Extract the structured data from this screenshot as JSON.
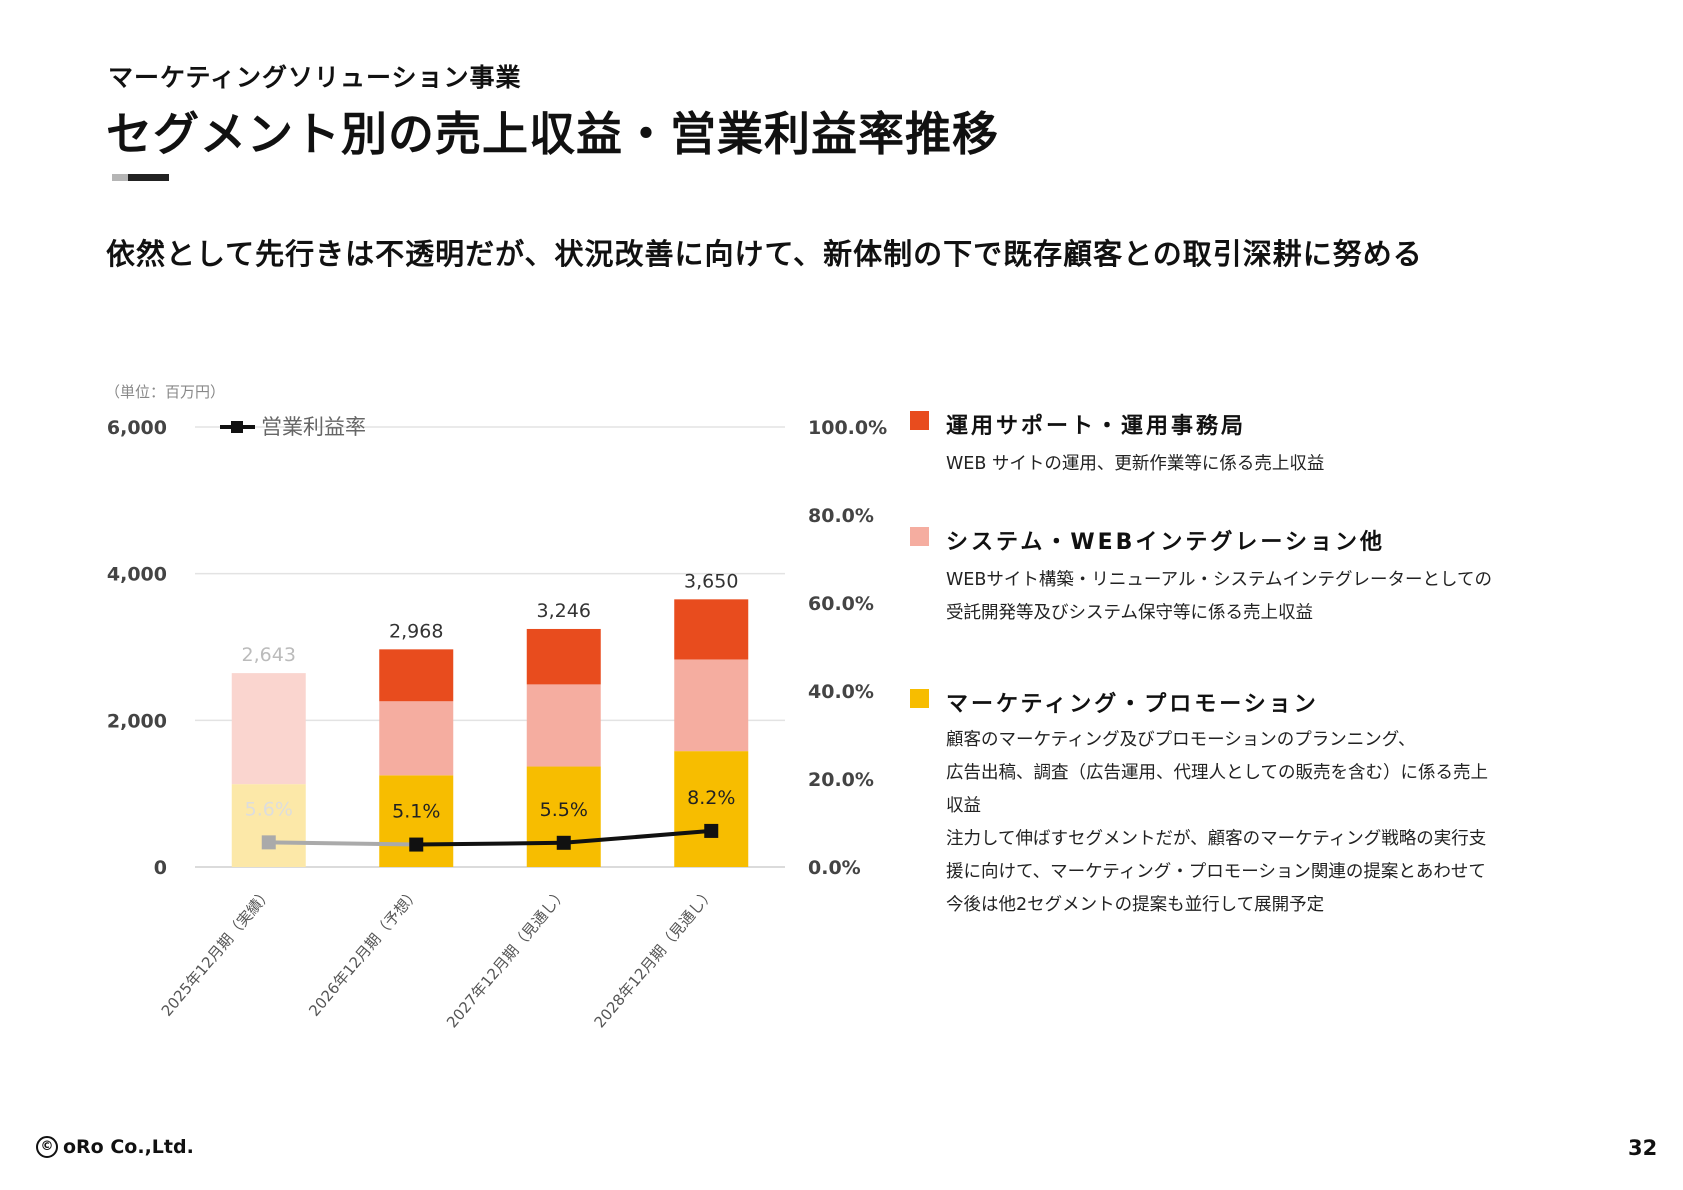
{
  "header": {
    "section_label": "マーケティングソリューション事業",
    "title": "セグメント別の売上収益・営業利益率推移",
    "subtitle": "依然として先行きは不透明だが、状況改善に向けて、新体制の下で既存顧客との取引深耕に努める"
  },
  "chart_data": {
    "type": "bar",
    "stacked": true,
    "unit_label": "（単位：百万円）",
    "categories": [
      "2025年12月期（実績）",
      "2026年12月期（予想）",
      "2027年12月期（見通し）",
      "2028年12月期（見通し）"
    ],
    "series": [
      {
        "name": "マーケティング・プロモーション",
        "color": "#F7BD00",
        "faded_color": "#FCE8A8",
        "values": [
          1130,
          1250,
          1370,
          1580
        ]
      },
      {
        "name": "システム・WEBインテグレーション他",
        "color": "#F5ADA0",
        "faded_color": "#FAD5CF",
        "values": [
          1510,
          1010,
          1120,
          1250
        ]
      },
      {
        "name": "運用サポート・運用事務局",
        "color": "#E84C1E",
        "faded_color": "#F6C3B8",
        "values": [
          3,
          708,
          756,
          820
        ]
      }
    ],
    "totals": [
      2643,
      2968,
      3246,
      3650
    ],
    "total_labels": [
      "2,643",
      "2,968",
      "3,246",
      "3,650"
    ],
    "first_category_faded": true,
    "left_axis": {
      "min": 0,
      "max": 6000,
      "ticks": [
        0,
        2000,
        4000,
        6000
      ],
      "tick_labels": [
        "0",
        "2,000",
        "4,000",
        "6,000"
      ]
    },
    "right_axis": {
      "min": 0,
      "max": 100,
      "ticks": [
        0,
        20,
        40,
        60,
        80,
        100
      ],
      "tick_labels": [
        "0.0%",
        "20.0%",
        "40.0%",
        "60.0%",
        "80.0%",
        "100.0%"
      ]
    },
    "line_series": {
      "name": "営業利益率",
      "values": [
        5.6,
        5.1,
        5.5,
        8.2
      ],
      "labels": [
        "5.6%",
        "5.1%",
        "5.5%",
        "8.2%"
      ],
      "color": "#111111",
      "faded_color": "#AAAAAA"
    },
    "gridlines": true,
    "legend_position": "top-left"
  },
  "legend": {
    "items": [
      {
        "title": "運用サポート・運用事務局",
        "color": "#E84C1E",
        "lines": [
          "WEB サイトの運用、更新作業等に係る売上収益"
        ]
      },
      {
        "title": "システム・WEBインテグレーション他",
        "color": "#F5ADA0",
        "lines": [
          "WEBサイト構築・リニューアル・システムインテグレーターとしての",
          "受託開発等及びシステム保守等に係る売上収益"
        ]
      },
      {
        "title": "マーケティング・プロモーション",
        "color": "#F7BD00",
        "lines": [
          "顧客のマーケティング及びプロモーションのプランニング、",
          "広告出稿、調査（広告運用、代理人としての販売を含む）に係る売上",
          "収益",
          "注力して伸ばすセグメントだが、顧客のマーケティング戦略の実行支",
          "援に向けて、マーケティング・プロモーション関連の提案とあわせて",
          "今後は他2セグメントの提案も並行して展開予定"
        ]
      }
    ]
  },
  "footer": {
    "copyright_symbol": "©",
    "company": "oRo Co.,Ltd.",
    "page_number": "32"
  }
}
